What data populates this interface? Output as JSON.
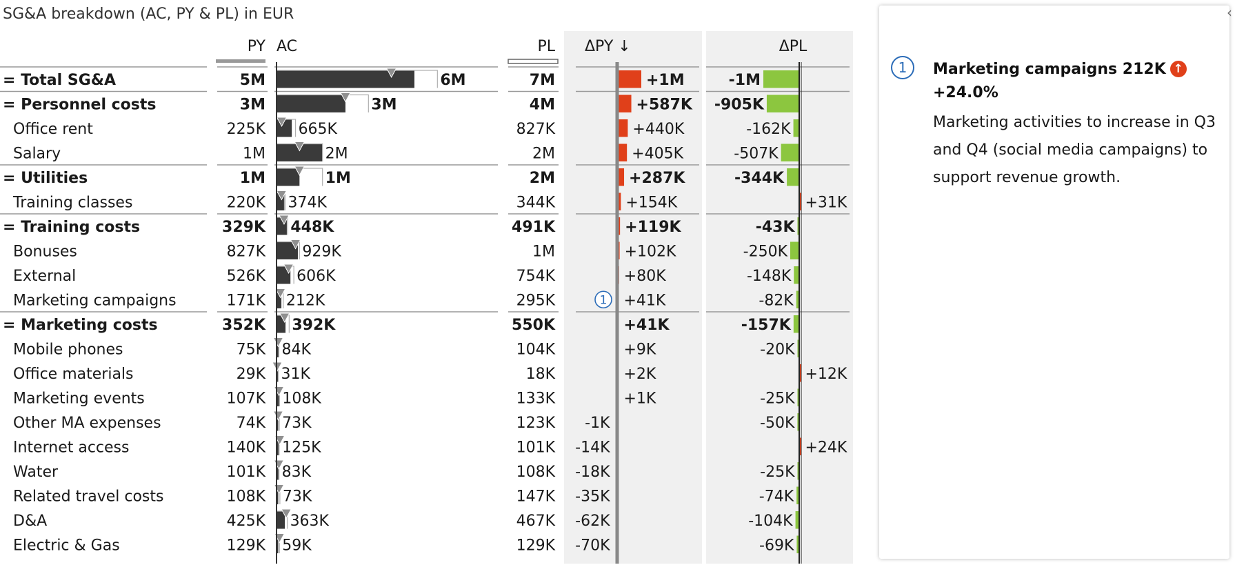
{
  "title": "SG&A breakdown (AC, PY & PL) in EUR",
  "colors": {
    "ac_bar": "#3a3a3a",
    "py_marker": "#909090",
    "negative": "#e0401a",
    "positive": "#8cc63f",
    "delta_bg": "#f0f0f0",
    "badge": "#2b6cb8"
  },
  "chart_data": {
    "type": "table",
    "headers": {
      "py": "PY",
      "ac": "AC",
      "pl": "PL",
      "dpy": "ΔPY ↓",
      "dpl": "ΔPL"
    },
    "rows": [
      {
        "label": "= Total SG&A",
        "bold": true,
        "py": 5000000,
        "ac": 6000000,
        "pl": 7000000,
        "dpy": 1000000,
        "dpl": -1000000,
        "py_label": "5M",
        "ac_label": "6M",
        "pl_label": "7M",
        "dpy_label": "+1M",
        "dpl_label": "-1M",
        "sep": true
      },
      {
        "label": "= Personnel costs",
        "bold": true,
        "py": 3000000,
        "ac": 3000000,
        "pl": 4000000,
        "dpy": 587000,
        "dpl": -905000,
        "py_label": "3M",
        "ac_label": "3M",
        "pl_label": "4M",
        "dpy_label": "+587K",
        "dpl_label": "-905K",
        "sep": true
      },
      {
        "label": "Office rent",
        "bold": false,
        "py": 225000,
        "ac": 665000,
        "pl": 827000,
        "dpy": 440000,
        "dpl": -162000,
        "py_label": "225K",
        "ac_label": "665K",
        "pl_label": "827K",
        "dpy_label": "+440K",
        "dpl_label": "-162K",
        "sep": false
      },
      {
        "label": "Salary",
        "bold": false,
        "py": 1000000,
        "ac": 2000000,
        "pl": 2000000,
        "dpy": 405000,
        "dpl": -507000,
        "py_label": "1M",
        "ac_label": "2M",
        "pl_label": "2M",
        "dpy_label": "+405K",
        "dpl_label": "-507K",
        "sep": false
      },
      {
        "label": "= Utilities",
        "bold": true,
        "py": 1000000,
        "ac": 1000000,
        "pl": 2000000,
        "dpy": 287000,
        "dpl": -344000,
        "py_label": "1M",
        "ac_label": "1M",
        "pl_label": "2M",
        "dpy_label": "+287K",
        "dpl_label": "-344K",
        "sep": true
      },
      {
        "label": "Training classes",
        "bold": false,
        "py": 220000,
        "ac": 374000,
        "pl": 344000,
        "dpy": 154000,
        "dpl": 31000,
        "py_label": "220K",
        "ac_label": "374K",
        "pl_label": "344K",
        "dpy_label": "+154K",
        "dpl_label": "+31K",
        "sep": false
      },
      {
        "label": "= Training costs",
        "bold": true,
        "py": 329000,
        "ac": 448000,
        "pl": 491000,
        "dpy": 119000,
        "dpl": -43000,
        "py_label": "329K",
        "ac_label": "448K",
        "pl_label": "491K",
        "dpy_label": "+119K",
        "dpl_label": "-43K",
        "sep": true
      },
      {
        "label": "Bonuses",
        "bold": false,
        "py": 827000,
        "ac": 929000,
        "pl": 1000000,
        "dpy": 102000,
        "dpl": -250000,
        "py_label": "827K",
        "ac_label": "929K",
        "pl_label": "1M",
        "dpy_label": "+102K",
        "dpl_label": "-250K",
        "sep": false
      },
      {
        "label": "External",
        "bold": false,
        "py": 526000,
        "ac": 606000,
        "pl": 754000,
        "dpy": 80000,
        "dpl": -148000,
        "py_label": "526K",
        "ac_label": "606K",
        "pl_label": "754K",
        "dpy_label": "+80K",
        "dpl_label": "-148K",
        "sep": false
      },
      {
        "label": "Marketing campaigns",
        "bold": false,
        "py": 171000,
        "ac": 212000,
        "pl": 295000,
        "dpy": 41000,
        "dpl": -82000,
        "py_label": "171K",
        "ac_label": "212K",
        "pl_label": "295K",
        "dpy_label": "+41K",
        "dpl_label": "-82K",
        "sep": false,
        "badge": "1"
      },
      {
        "label": "= Marketing costs",
        "bold": true,
        "py": 352000,
        "ac": 392000,
        "pl": 550000,
        "dpy": 41000,
        "dpl": -157000,
        "py_label": "352K",
        "ac_label": "392K",
        "pl_label": "550K",
        "dpy_label": "+41K",
        "dpl_label": "-157K",
        "sep": true
      },
      {
        "label": "Mobile phones",
        "bold": false,
        "py": 75000,
        "ac": 84000,
        "pl": 104000,
        "dpy": 9000,
        "dpl": -20000,
        "py_label": "75K",
        "ac_label": "84K",
        "pl_label": "104K",
        "dpy_label": "+9K",
        "dpl_label": "-20K",
        "sep": false
      },
      {
        "label": "Office materials",
        "bold": false,
        "py": 29000,
        "ac": 31000,
        "pl": 18000,
        "dpy": 2000,
        "dpl": 12000,
        "py_label": "29K",
        "ac_label": "31K",
        "pl_label": "18K",
        "dpy_label": "+2K",
        "dpl_label": "+12K",
        "sep": false
      },
      {
        "label": "Marketing events",
        "bold": false,
        "py": 107000,
        "ac": 108000,
        "pl": 133000,
        "dpy": 1000,
        "dpl": -25000,
        "py_label": "107K",
        "ac_label": "108K",
        "pl_label": "133K",
        "dpy_label": "+1K",
        "dpl_label": "-25K",
        "sep": false
      },
      {
        "label": "Other MA expenses",
        "bold": false,
        "py": 74000,
        "ac": 73000,
        "pl": 123000,
        "dpy": -1000,
        "dpl": -50000,
        "py_label": "74K",
        "ac_label": "73K",
        "pl_label": "123K",
        "dpy_label": "-1K",
        "dpl_label": "-50K",
        "sep": false
      },
      {
        "label": "Internet access",
        "bold": false,
        "py": 140000,
        "ac": 125000,
        "pl": 101000,
        "dpy": -14000,
        "dpl": 24000,
        "py_label": "140K",
        "ac_label": "125K",
        "pl_label": "101K",
        "dpy_label": "-14K",
        "dpl_label": "+24K",
        "sep": false
      },
      {
        "label": "Water",
        "bold": false,
        "py": 101000,
        "ac": 83000,
        "pl": 108000,
        "dpy": -18000,
        "dpl": -25000,
        "py_label": "101K",
        "ac_label": "83K",
        "pl_label": "108K",
        "dpy_label": "-18K",
        "dpl_label": "-25K",
        "sep": false
      },
      {
        "label": "Related travel costs",
        "bold": false,
        "py": 108000,
        "ac": 73000,
        "pl": 147000,
        "dpy": -35000,
        "dpl": -74000,
        "py_label": "108K",
        "ac_label": "73K",
        "pl_label": "147K",
        "dpy_label": "-35K",
        "dpl_label": "-74K",
        "sep": false
      },
      {
        "label": "D&A",
        "bold": false,
        "py": 425000,
        "ac": 363000,
        "pl": 467000,
        "dpy": -62000,
        "dpl": -104000,
        "py_label": "425K",
        "ac_label": "363K",
        "pl_label": "467K",
        "dpy_label": "-62K",
        "dpl_label": "-104K",
        "sep": false
      },
      {
        "label": "Electric & Gas",
        "bold": false,
        "py": 129000,
        "ac": 59000,
        "pl": 129000,
        "dpy": -70000,
        "dpl": -69000,
        "py_label": "129K",
        "ac_label": "59K",
        "pl_label": "129K",
        "dpy_label": "-70K",
        "dpl_label": "-69K",
        "sep": false
      }
    ]
  },
  "comment": {
    "number": "1",
    "title": "Marketing campaigns 212K",
    "change": "+24.0%",
    "arrow": "↑",
    "body": "Marketing activities to increase in Q3 and Q4 (social media campaigns) to support revenue growth."
  },
  "edge_handle": "‹"
}
